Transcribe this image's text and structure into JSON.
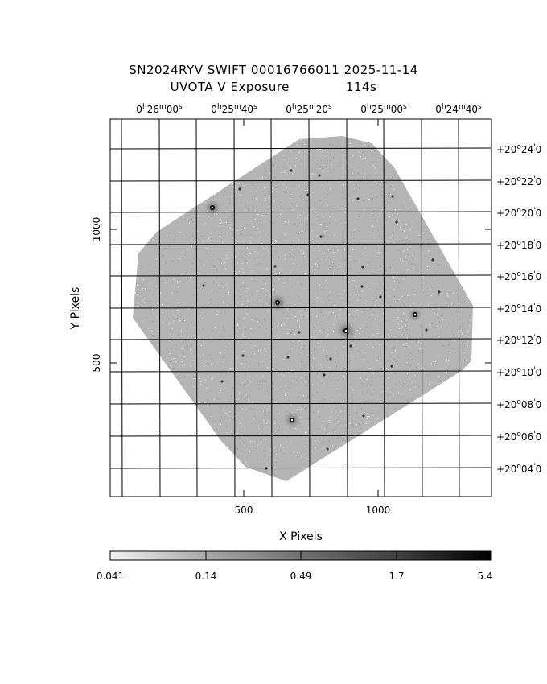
{
  "title": {
    "line1": "SN2024RYV SWIFT 00016766011 2025-11-14",
    "line2_left": "UVOTA V Exposure",
    "line2_right": "114s"
  },
  "axes": {
    "xlabel": "X Pixels",
    "ylabel": "Y Pixels",
    "x_ticks": [
      "500",
      "1000"
    ],
    "y_ticks": [
      "500",
      "1000"
    ]
  },
  "ra_labels": [
    {
      "h": "0",
      "m": "26",
      "s": "00"
    },
    {
      "h": "0",
      "m": "25",
      "s": "40"
    },
    {
      "h": "0",
      "m": "25",
      "s": "20"
    },
    {
      "h": "0",
      "m": "25",
      "s": "00"
    },
    {
      "h": "0",
      "m": "24",
      "s": "40"
    }
  ],
  "dec_labels": [
    {
      "deg": "+20",
      "min": "24"
    },
    {
      "deg": "+20",
      "min": "22"
    },
    {
      "deg": "+20",
      "min": "20"
    },
    {
      "deg": "+20",
      "min": "18"
    },
    {
      "deg": "+20",
      "min": "16"
    },
    {
      "deg": "+20",
      "min": "14"
    },
    {
      "deg": "+20",
      "min": "12"
    },
    {
      "deg": "+20",
      "min": "10"
    },
    {
      "deg": "+20",
      "min": "08"
    },
    {
      "deg": "+20",
      "min": "06"
    },
    {
      "deg": "+20",
      "min": "04"
    }
  ],
  "colorbar": {
    "labels": [
      "0.041",
      "0.14",
      "0.49",
      "1.7",
      "5.4"
    ]
  }
}
